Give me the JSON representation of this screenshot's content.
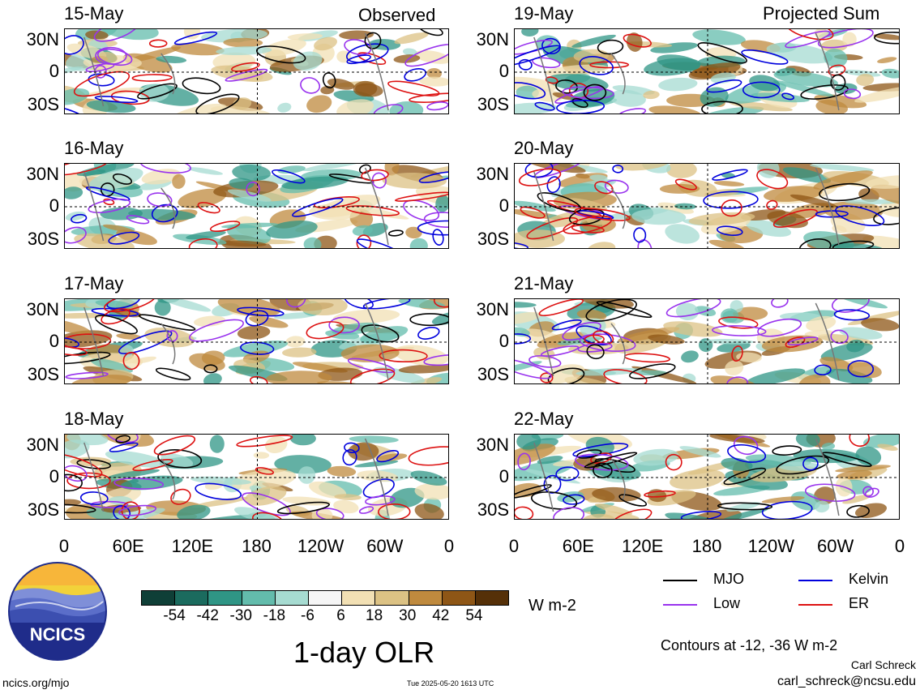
{
  "headers": {
    "left": "Observed",
    "right": "Projected Sum"
  },
  "panels": {
    "left": [
      {
        "date": "15-May"
      },
      {
        "date": "16-May"
      },
      {
        "date": "17-May"
      },
      {
        "date": "18-May"
      }
    ],
    "right": [
      {
        "date": "19-May"
      },
      {
        "date": "20-May"
      },
      {
        "date": "21-May"
      },
      {
        "date": "22-May"
      }
    ]
  },
  "lat_labels": [
    "30N",
    "0",
    "30S"
  ],
  "lon_labels": [
    "0",
    "60E",
    "120E",
    "180",
    "120W",
    "60W",
    "0"
  ],
  "colorbar": {
    "colors": [
      "#0f3f37",
      "#1b6b5e",
      "#2f9585",
      "#63bcac",
      "#a6dbd1",
      "#f5f5f5",
      "#f2e0b4",
      "#dcc284",
      "#bf8a3e",
      "#8e5616",
      "#553008"
    ],
    "ticks": [
      "-54",
      "-42",
      "-30",
      "-18",
      "-6",
      "6",
      "18",
      "30",
      "42",
      "54"
    ],
    "units": "W m-2"
  },
  "title": "1-day OLR",
  "legend": [
    {
      "label": "MJO",
      "color": "#000000"
    },
    {
      "label": "Kelvin",
      "color": "#0000dd"
    },
    {
      "label": "Low",
      "color": "#9933ee"
    },
    {
      "label": "ER",
      "color": "#dd1111"
    }
  ],
  "contours_note": "Contours at -12, -36 W m-2",
  "author": "Carl Schreck",
  "email": "carl_schreck@ncsu.edu",
  "site": "ncics.org/mjo",
  "timestamp": "Tue 2025-05-20 1613 UTC",
  "logo_text": "NCICS"
}
